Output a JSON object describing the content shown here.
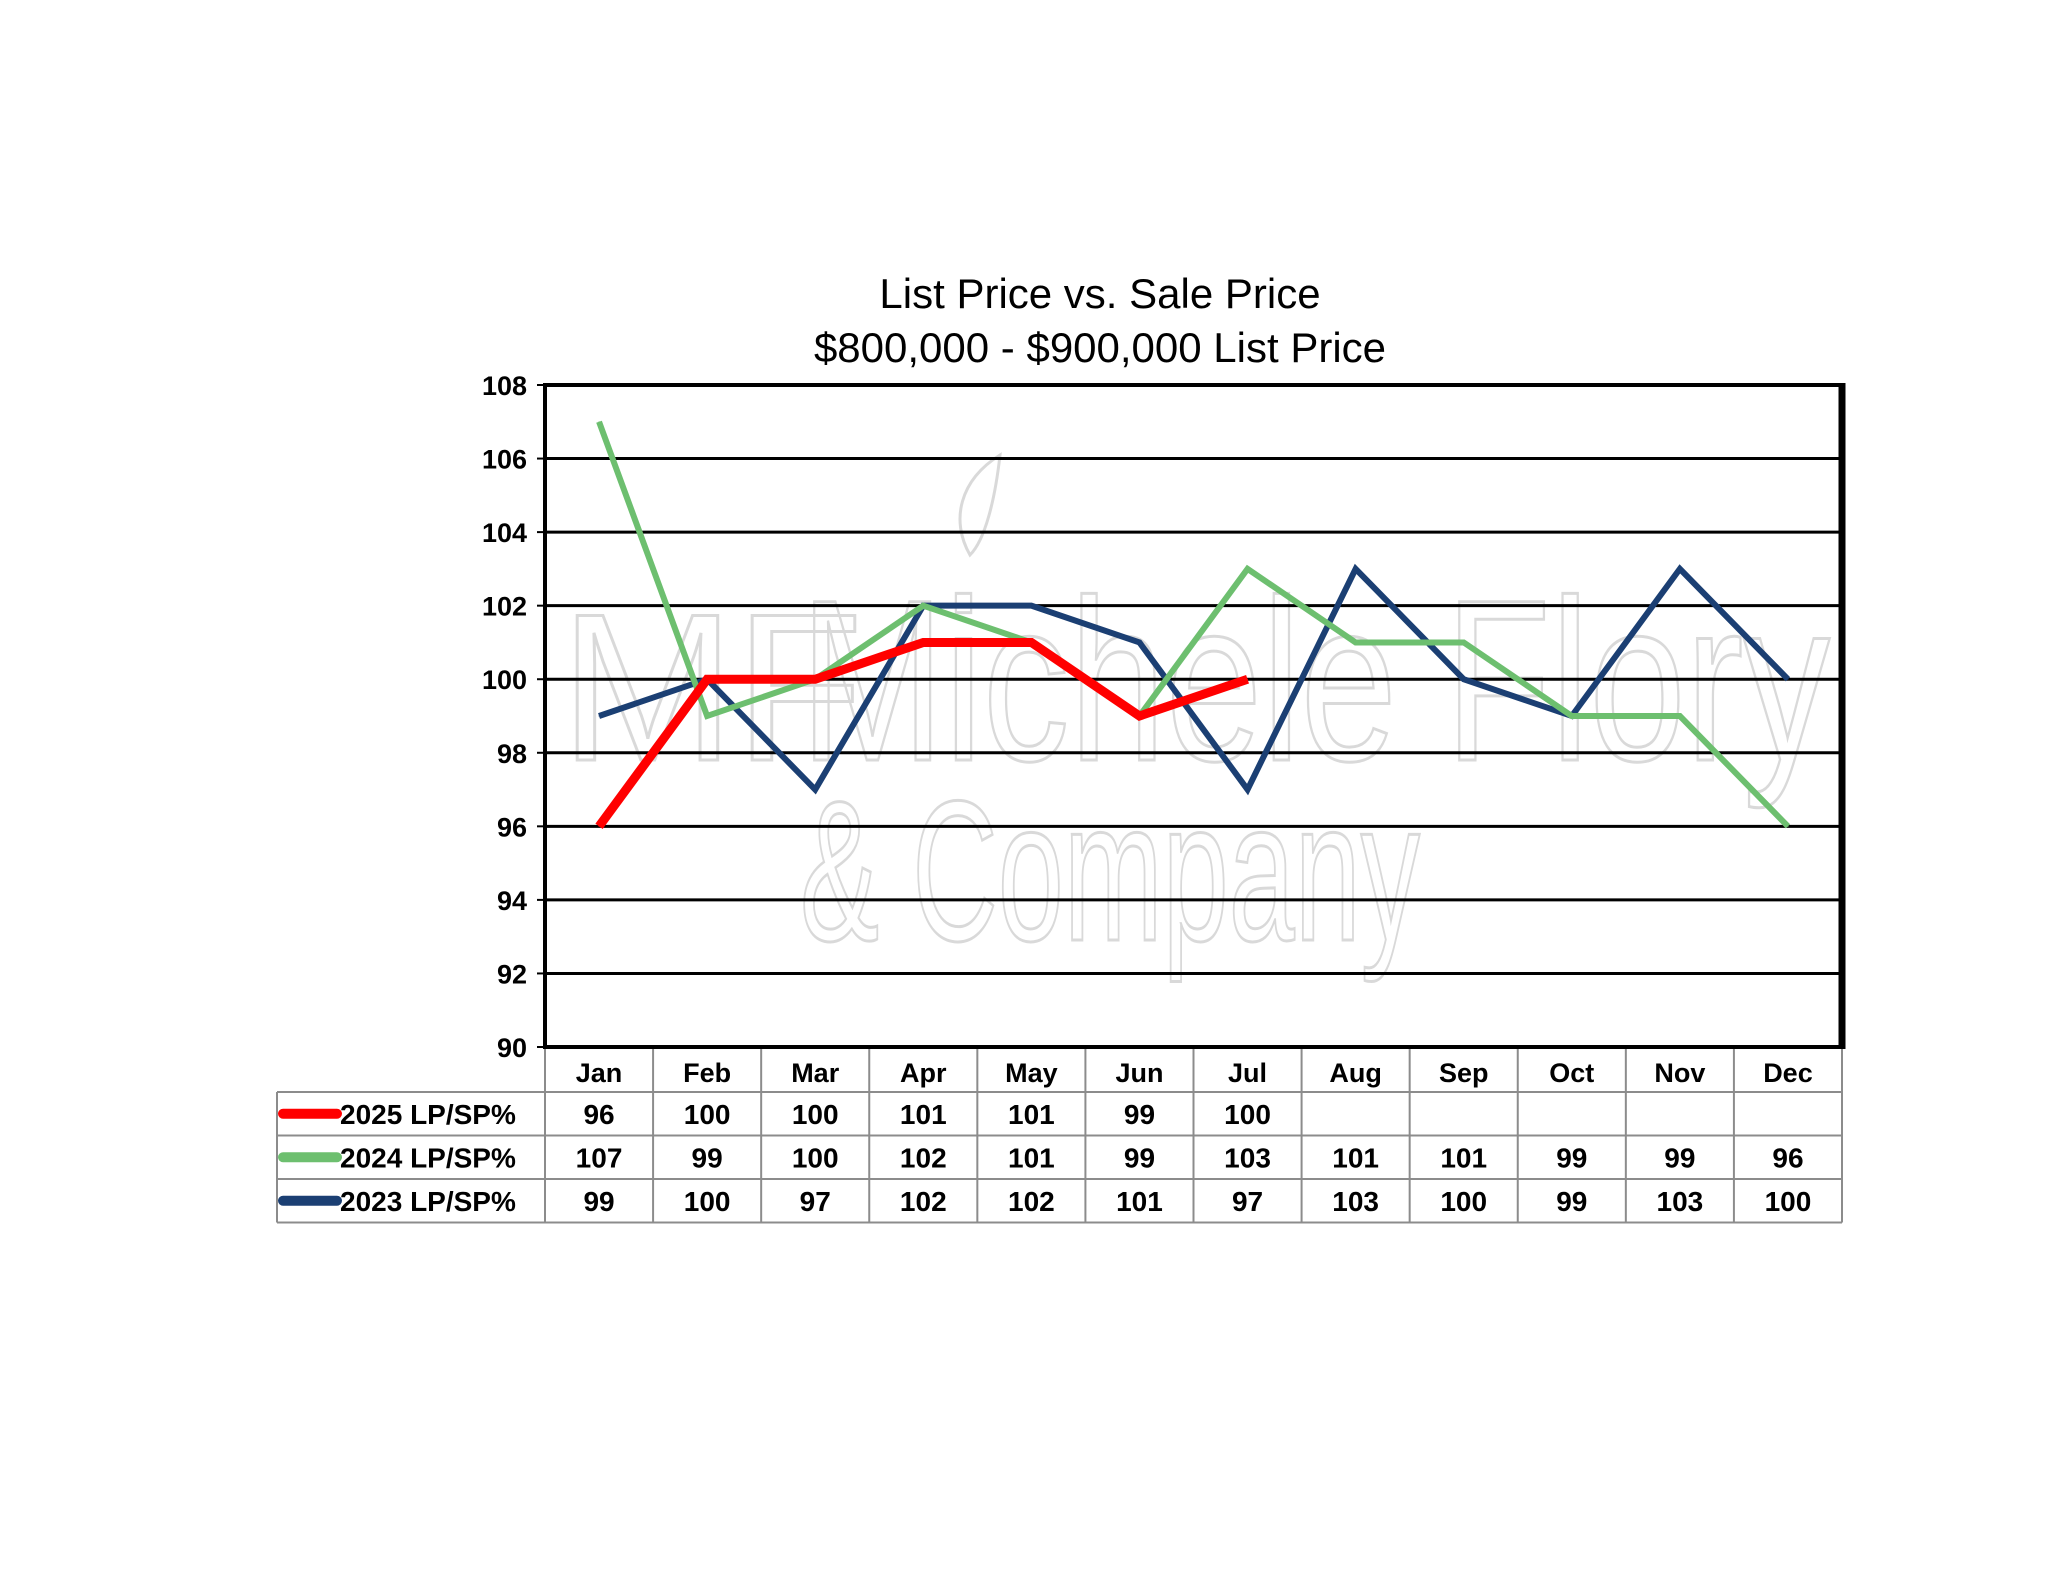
{
  "chart_data": {
    "type": "line",
    "title": "List Price vs. Sale Price",
    "subtitle": "$800,000 - $900,000 List Price",
    "categories": [
      "Jan",
      "Feb",
      "Mar",
      "Apr",
      "May",
      "Jun",
      "Jul",
      "Aug",
      "Sep",
      "Oct",
      "Nov",
      "Dec"
    ],
    "ylim": [
      90,
      108
    ],
    "yticks": [
      "90",
      "92",
      "94",
      "96",
      "98",
      "100",
      "102",
      "104",
      "106",
      "108"
    ],
    "grid": true,
    "legend": "data-table",
    "series": [
      {
        "name": "2025 LP/SP%",
        "color": "#ff0000",
        "values": [
          96,
          100,
          100,
          101,
          101,
          99,
          100,
          null,
          null,
          null,
          null,
          null
        ]
      },
      {
        "name": "2024 LP/SP%",
        "color": "#6dbf6f",
        "values": [
          107,
          99,
          100,
          102,
          101,
          99,
          103,
          101,
          101,
          99,
          99,
          96
        ]
      },
      {
        "name": "2023 LP/SP%",
        "color": "#1b3f73",
        "values": [
          99,
          100,
          97,
          102,
          102,
          101,
          97,
          103,
          100,
          99,
          103,
          100
        ]
      }
    ]
  },
  "watermark": {
    "name": "Michele Flory",
    "company": "& Company",
    "monogram": "MF"
  }
}
